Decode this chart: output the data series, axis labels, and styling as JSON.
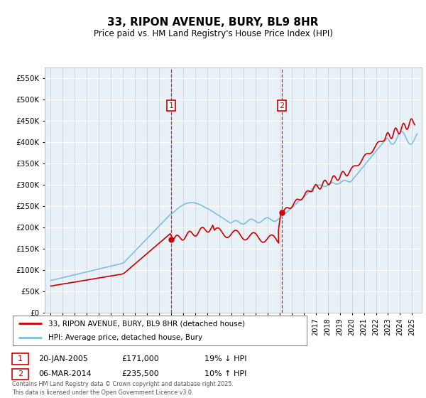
{
  "title": "33, RIPON AVENUE, BURY, BL9 8HR",
  "subtitle": "Price paid vs. HM Land Registry's House Price Index (HPI)",
  "hpi_color": "#7fbfdf",
  "price_color": "#cc0000",
  "background_color": "#e8f0f8",
  "annotation1_date": "20-JAN-2005",
  "annotation1_price": "£171,000",
  "annotation1_text": "19% ↓ HPI",
  "annotation2_date": "06-MAR-2014",
  "annotation2_price": "£235,500",
  "annotation2_text": "10% ↑ HPI",
  "footnote": "Contains HM Land Registry data © Crown copyright and database right 2025.\nThis data is licensed under the Open Government Licence v3.0.",
  "legend1": "33, RIPON AVENUE, BURY, BL9 8HR (detached house)",
  "legend2": "HPI: Average price, detached house, Bury",
  "ylim": [
    0,
    575000
  ],
  "yticks": [
    0,
    50000,
    100000,
    150000,
    200000,
    250000,
    300000,
    350000,
    400000,
    450000,
    500000,
    550000
  ],
  "vline1_x": 2005.0,
  "vline2_x": 2014.18,
  "marker1_x": 2005.0,
  "marker1_y": 171000,
  "marker2_x": 2014.18,
  "marker2_y": 235500,
  "xlim_left": 1994.5,
  "xlim_right": 2025.8
}
